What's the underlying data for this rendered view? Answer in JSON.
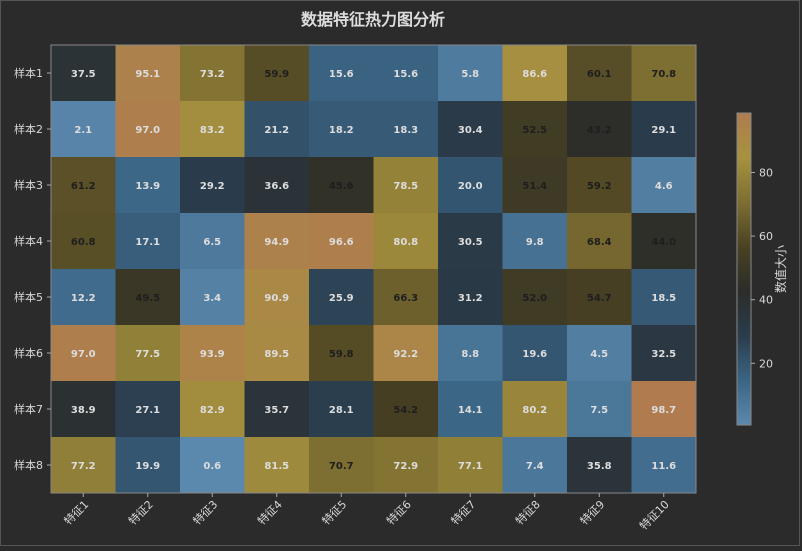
{
  "chart_data": {
    "type": "heatmap",
    "title": "数据特征热力图分析",
    "rows": [
      "样本1",
      "样本2",
      "样本3",
      "样本4",
      "样本5",
      "样本6",
      "样本7",
      "样本8"
    ],
    "columns": [
      "特征1",
      "特征2",
      "特征3",
      "特征4",
      "特征5",
      "特征6",
      "特征7",
      "特征8",
      "特征9",
      "特征10"
    ],
    "values": [
      [
        37.5,
        95.1,
        73.2,
        59.9,
        15.6,
        15.6,
        5.8,
        86.6,
        60.1,
        70.8
      ],
      [
        2.1,
        97.0,
        83.2,
        21.2,
        18.2,
        18.3,
        30.4,
        52.5,
        43.2,
        29.1
      ],
      [
        61.2,
        13.9,
        29.2,
        36.6,
        45.6,
        78.5,
        20.0,
        51.4,
        59.2,
        4.6
      ],
      [
        60.8,
        17.1,
        6.5,
        94.9,
        96.6,
        80.8,
        30.5,
        9.8,
        68.4,
        44.0
      ],
      [
        12.2,
        49.5,
        3.4,
        90.9,
        25.9,
        66.3,
        31.2,
        52.0,
        54.7,
        18.5
      ],
      [
        97.0,
        77.5,
        93.9,
        89.5,
        59.8,
        92.2,
        8.8,
        19.6,
        4.5,
        32.5
      ],
      [
        38.9,
        27.1,
        82.9,
        35.7,
        28.1,
        54.2,
        14.1,
        80.2,
        7.5,
        98.7
      ],
      [
        77.2,
        19.9,
        0.6,
        81.5,
        70.7,
        72.9,
        77.1,
        7.4,
        35.8,
        11.6
      ]
    ],
    "colorbar": {
      "label": "数值大小",
      "ticks": [
        20,
        40,
        60,
        80
      ],
      "range": [
        0.6,
        98.7
      ]
    },
    "colormap": [
      "#5b88ad",
      "#3b6585",
      "#2a3c4c",
      "#2c2d2a",
      "#4a4222",
      "#7d6e31",
      "#a6923f",
      "#b07b4f"
    ]
  }
}
